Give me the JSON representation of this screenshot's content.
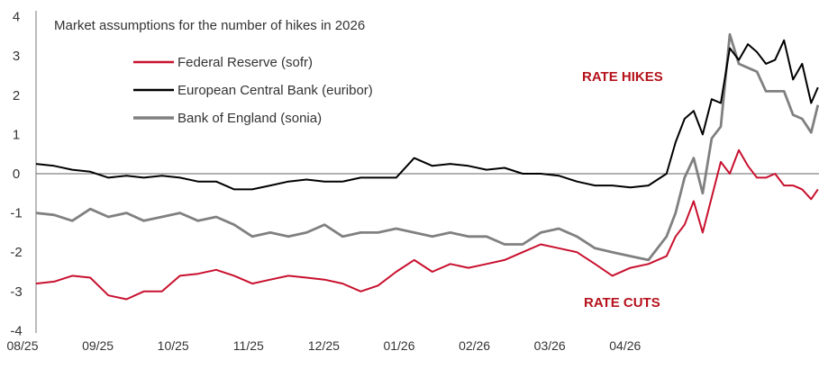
{
  "chart_data": {
    "type": "line",
    "title": "Market assumptions for the number of hikes in 2026",
    "xlabel": "",
    "ylabel": "",
    "ylim": [
      -4,
      4
    ],
    "yticks": [
      "4",
      "3",
      "2",
      "1",
      "0",
      "-1",
      "-2",
      "-3",
      "-4"
    ],
    "xticks": [
      "08/25",
      "09/25",
      "10/25",
      "11/25",
      "12/25",
      "01/26",
      "02/26",
      "03/26",
      "04/26"
    ],
    "x_note": "x in months since 08/25",
    "annotations": {
      "hikes": "RATE HIKES",
      "cuts": "RATE CUTS"
    },
    "legend_position": "top-left",
    "x": [
      0.18,
      0.42,
      0.66,
      0.9,
      1.14,
      1.38,
      1.61,
      1.85,
      2.09,
      2.33,
      2.57,
      2.81,
      3.05,
      3.29,
      3.53,
      3.77,
      4.01,
      4.25,
      4.49,
      4.72,
      4.96,
      5.2,
      5.44,
      5.68,
      5.92,
      6.16,
      6.4,
      6.64,
      6.88,
      7.12,
      7.36,
      7.6,
      7.83,
      8.07,
      8.31,
      8.55,
      8.67,
      8.79,
      8.91,
      9.03,
      9.15,
      9.27,
      9.39,
      9.51,
      9.63,
      9.75,
      9.87,
      9.99,
      10.11,
      10.23,
      10.35,
      10.47,
      10.56
    ],
    "series": [
      {
        "name": "Federal Reserve (sofr)",
        "color": "#c8102e",
        "values": [
          -2.8,
          -2.75,
          -2.6,
          -2.65,
          -3.1,
          -3.2,
          -3.0,
          -3.0,
          -2.6,
          -2.55,
          -2.45,
          -2.6,
          -2.8,
          -2.7,
          -2.6,
          -2.65,
          -2.7,
          -2.8,
          -3.0,
          -2.85,
          -2.5,
          -2.2,
          -2.5,
          -2.3,
          -2.4,
          -2.3,
          -2.2,
          -2.0,
          -1.8,
          -1.9,
          -2.0,
          -2.3,
          -2.6,
          -2.4,
          -2.3,
          -2.1,
          -1.6,
          -1.3,
          -0.7,
          -1.5,
          -0.6,
          0.3,
          0.0,
          0.6,
          0.2,
          -0.1,
          -0.1,
          0.0,
          -0.3,
          -0.3,
          -0.4,
          -0.65,
          -0.4
        ]
      },
      {
        "name": "European Central Bank (euribor)",
        "color": "#000000",
        "values": [
          0.25,
          0.2,
          0.1,
          0.05,
          -0.1,
          -0.05,
          -0.1,
          -0.05,
          -0.1,
          -0.2,
          -0.2,
          -0.4,
          -0.4,
          -0.3,
          -0.2,
          -0.15,
          -0.2,
          -0.2,
          -0.1,
          -0.1,
          -0.1,
          0.4,
          0.2,
          0.25,
          0.2,
          0.1,
          0.15,
          0.0,
          0.0,
          -0.05,
          -0.2,
          -0.3,
          -0.3,
          -0.35,
          -0.3,
          0.0,
          0.8,
          1.4,
          1.6,
          1.0,
          1.9,
          1.8,
          3.2,
          2.9,
          3.3,
          3.1,
          2.8,
          2.9,
          3.4,
          2.4,
          2.8,
          1.8,
          2.2
        ]
      },
      {
        "name": "Bank of England (sonia)",
        "color": "#808080",
        "values": [
          -1.0,
          -1.05,
          -1.2,
          -0.9,
          -1.1,
          -1.0,
          -1.2,
          -1.1,
          -1.0,
          -1.2,
          -1.1,
          -1.3,
          -1.6,
          -1.5,
          -1.6,
          -1.5,
          -1.3,
          -1.6,
          -1.5,
          -1.5,
          -1.4,
          -1.5,
          -1.6,
          -1.5,
          -1.6,
          -1.6,
          -1.8,
          -1.8,
          -1.5,
          -1.4,
          -1.6,
          -1.9,
          -2.0,
          -2.1,
          -2.2,
          -1.6,
          -1.0,
          -0.1,
          0.4,
          -0.5,
          0.9,
          1.2,
          3.55,
          2.8,
          2.7,
          2.6,
          2.1,
          2.1,
          2.1,
          1.5,
          1.4,
          1.05,
          1.75
        ]
      }
    ]
  }
}
